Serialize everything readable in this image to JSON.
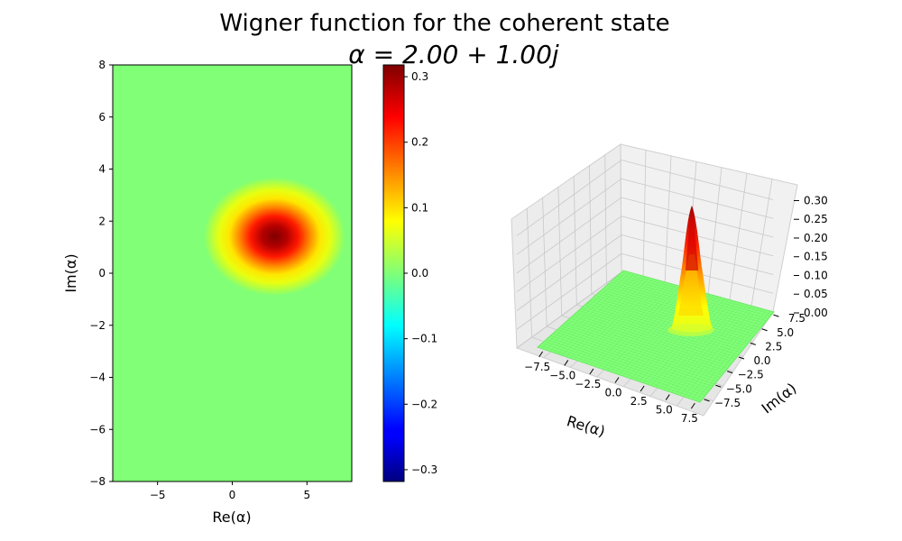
{
  "figure": {
    "title_line1": "Wigner function for the coherent state",
    "title_line2": "α = 2.00 + 1.00j"
  },
  "colors": {
    "background_level": "#80ff77",
    "colormap": "jet"
  },
  "chart_data": [
    {
      "type": "heatmap",
      "xlabel": "Re(α)",
      "ylabel": "Im(α)",
      "xlim": [
        -8,
        8
      ],
      "ylim": [
        -8,
        8
      ],
      "x_ticks": [
        -5,
        0,
        5
      ],
      "y_ticks": [
        -8,
        -6,
        -4,
        -2,
        0,
        2,
        4,
        6,
        8
      ],
      "peak": {
        "x": 2.83,
        "y": 1.41,
        "value": 0.318
      },
      "colorbar": {
        "range": [
          -0.318,
          0.318
        ],
        "ticks": [
          -0.3,
          -0.2,
          -0.1,
          0.0,
          0.1,
          0.2,
          0.3
        ]
      }
    },
    {
      "type": "surface3d",
      "xlabel": "Re(α)",
      "ylabel": "Im(α)",
      "xlim": [
        -8,
        8
      ],
      "ylim": [
        -8,
        8
      ],
      "zlim": [
        0,
        0.318
      ],
      "x_ticks": [
        -7.5,
        -5.0,
        -2.5,
        0.0,
        2.5,
        5.0,
        7.5
      ],
      "y_ticks": [
        -7.5,
        -5.0,
        -2.5,
        0.0,
        2.5,
        5.0,
        7.5
      ],
      "z_ticks": [
        0.0,
        0.05,
        0.1,
        0.15,
        0.2,
        0.25,
        0.3
      ],
      "peak": {
        "x": 2.83,
        "y": 1.41,
        "value": 0.318
      }
    }
  ]
}
